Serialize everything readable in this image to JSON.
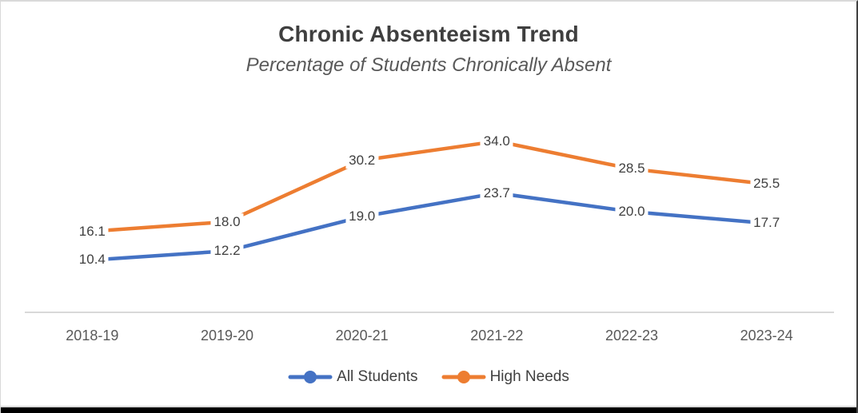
{
  "chart_data": {
    "type": "line",
    "title": "Chronic Absenteeism Trend",
    "subtitle": "Percentage of Students Chronically Absent",
    "categories": [
      "2018-19",
      "2019-20",
      "2020-21",
      "2021-22",
      "2022-23",
      "2023-24"
    ],
    "series": [
      {
        "name": "All Students",
        "color": "#4472C4",
        "values": [
          10.4,
          12.2,
          19.0,
          23.7,
          20.0,
          17.7
        ]
      },
      {
        "name": "High Needs",
        "color": "#ED7D31",
        "values": [
          16.1,
          18.0,
          30.2,
          34.0,
          28.5,
          25.5
        ]
      }
    ],
    "ylim": [
      0,
      40
    ],
    "grid": false,
    "y_axis_visible": false,
    "legend_position": "bottom",
    "data_label_decimals": 1
  },
  "colors": {
    "axis_line": "#D9D9D9",
    "title_text": "#3F3F3F",
    "subtitle_text": "#595959",
    "data_label_text": "#3F3F3F",
    "axis_tick_text": "#595959",
    "legend_text": "#404040",
    "frame_bottom_bar": "#000000"
  }
}
